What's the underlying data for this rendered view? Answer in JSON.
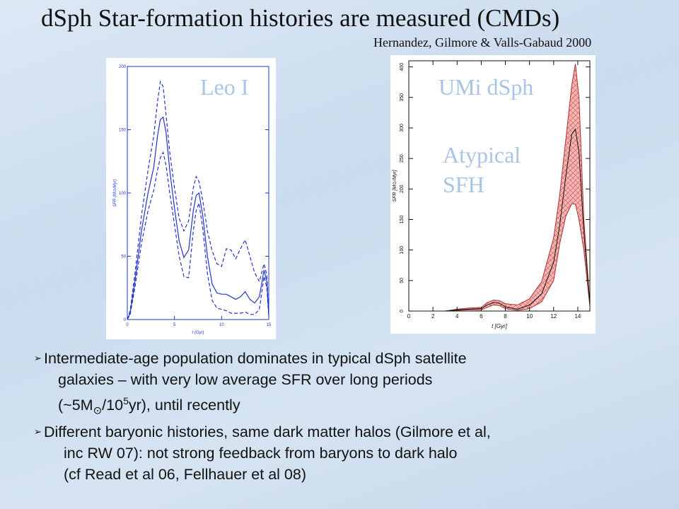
{
  "title": "dSph Star-formation histories are measured (CMDs)",
  "citation": "Hernandez, Gilmore & Valls-Gabaud 2000",
  "overlays": {
    "leo": "Leo I",
    "umi": "UMi dSph",
    "atypical_line1": "Atypical",
    "atypical_line2": "SFH"
  },
  "bullets": {
    "b1_line1": "Intermediate-age population dominates in typical dSph satellite",
    "b1_line2": "galaxies – with very low average SFR over long periods",
    "b1_line3_a": "(~5M",
    "b1_line3_sun": "⊙",
    "b1_line3_b": "/10",
    "b1_line3_exp": "5",
    "b1_line3_c": "yr), until recently",
    "b2_line1": "Different baryonic histories, same dark matter halos (Gilmore et al,",
    "b2_line2": "inc RW 07): not strong feedback from baryons to dark halo",
    "b2_line3": "(cf Read et al 06, Fellhauer et al 08)"
  },
  "chart_data": [
    {
      "type": "line",
      "xlabel": "t (Gyr)",
      "ylabel": "SFR (M⊙/Myr)",
      "xlim": [
        0,
        15
      ],
      "ylim": [
        0,
        200
      ],
      "x_ticks": [
        "0",
        "5",
        "10",
        "15"
      ],
      "y_ticks": [
        "0",
        "50",
        "100",
        "150",
        "200"
      ],
      "series": [
        {
          "style": "solid",
          "x": [
            0,
            0.3,
            0.8,
            1.5,
            2.2,
            2.8,
            3.2,
            3.5,
            3.8,
            4.1,
            4.5,
            5.0,
            5.5,
            6.0,
            6.5,
            7.0,
            7.3,
            7.6,
            8.0,
            8.5,
            9.0,
            9.5,
            10.0,
            10.5,
            11.0,
            11.5,
            12.0,
            12.5,
            13.0,
            13.5,
            14.0,
            14.5,
            14.8,
            15.0
          ],
          "y": [
            0,
            5,
            30,
            70,
            100,
            120,
            145,
            158,
            160,
            148,
            118,
            88,
            62,
            49,
            55,
            86,
            98,
            100,
            82,
            50,
            28,
            21,
            20,
            20,
            18,
            16,
            18,
            22,
            16,
            13,
            18,
            39,
            30,
            3
          ]
        },
        {
          "style": "dashed",
          "x": [
            0,
            0.3,
            0.8,
            1.5,
            2.2,
            2.8,
            3.2,
            3.5,
            3.8,
            4.1,
            4.5,
            5.0,
            5.5,
            6.0,
            6.5,
            7.0,
            7.3,
            7.6,
            8.0,
            8.5,
            9.0,
            9.5,
            10.0,
            10.5,
            11.0,
            11.5,
            12.0,
            12.5,
            13.0,
            13.5,
            14.0,
            14.5,
            14.8,
            15.0
          ],
          "y": [
            0,
            7,
            36,
            82,
            118,
            145,
            172,
            188,
            184,
            162,
            132,
            104,
            80,
            70,
            78,
            104,
            113,
            109,
            94,
            70,
            54,
            44,
            42,
            56,
            55,
            48,
            56,
            63,
            50,
            37,
            30,
            44,
            35,
            3
          ]
        },
        {
          "style": "dashed",
          "x": [
            0,
            0.3,
            0.8,
            1.5,
            2.2,
            2.8,
            3.2,
            3.5,
            3.8,
            4.1,
            4.5,
            5.0,
            5.5,
            6.0,
            6.5,
            7.0,
            7.3,
            7.6,
            8.0,
            8.5,
            9.0,
            9.5,
            10.0,
            10.5,
            11.0,
            11.5,
            12.0,
            12.5,
            13.0,
            13.5,
            14.0,
            14.5,
            14.8,
            15.0
          ],
          "y": [
            0,
            4,
            25,
            60,
            86,
            102,
            118,
            128,
            132,
            122,
            100,
            75,
            50,
            34,
            33,
            70,
            86,
            92,
            72,
            36,
            15,
            9,
            8,
            7,
            5,
            5,
            5,
            6,
            4,
            4,
            8,
            34,
            25,
            2
          ]
        }
      ]
    },
    {
      "type": "area",
      "xlabel": "t [Gyr]",
      "ylabel": "SFR [M⊙/Myr]",
      "xlim": [
        0,
        15
      ],
      "ylim": [
        0,
        410
      ],
      "x_ticks": [
        "0",
        "2",
        "4",
        "6",
        "8",
        "10",
        "12",
        "14"
      ],
      "y_ticks": [
        "0",
        "50",
        "100",
        "150",
        "200",
        "250",
        "300",
        "350",
        "400"
      ],
      "series": [
        {
          "style": "median",
          "x": [
            0,
            3,
            4,
            5,
            6,
            6.5,
            7,
            7.5,
            8,
            9,
            10,
            11,
            12,
            12.5,
            13,
            13.5,
            13.8,
            14.1,
            14.5,
            15
          ],
          "y": [
            0,
            0,
            2,
            3,
            4,
            10,
            14,
            13,
            7,
            3,
            10,
            28,
            80,
            140,
            220,
            290,
            298,
            260,
            130,
            10
          ]
        },
        {
          "style": "upper",
          "x": [
            0,
            3,
            4,
            5,
            6,
            6.5,
            7,
            7.5,
            8,
            9,
            10,
            11,
            12,
            12.5,
            13,
            13.5,
            13.8,
            14.1,
            14.5,
            15
          ],
          "y": [
            0,
            0,
            3,
            5,
            6,
            14,
            18,
            17,
            12,
            10,
            20,
            48,
            120,
            190,
            280,
            370,
            405,
            350,
            150,
            12
          ]
        },
        {
          "style": "lower",
          "x": [
            0,
            3,
            4,
            5,
            6,
            6.5,
            7,
            7.5,
            8,
            9,
            10,
            11,
            12,
            12.5,
            13,
            13.5,
            13.8,
            14.1,
            14.5,
            15
          ],
          "y": [
            0,
            0,
            1,
            2,
            2,
            6,
            10,
            9,
            4,
            1,
            4,
            15,
            50,
            110,
            155,
            176,
            175,
            150,
            100,
            8
          ]
        }
      ]
    }
  ]
}
